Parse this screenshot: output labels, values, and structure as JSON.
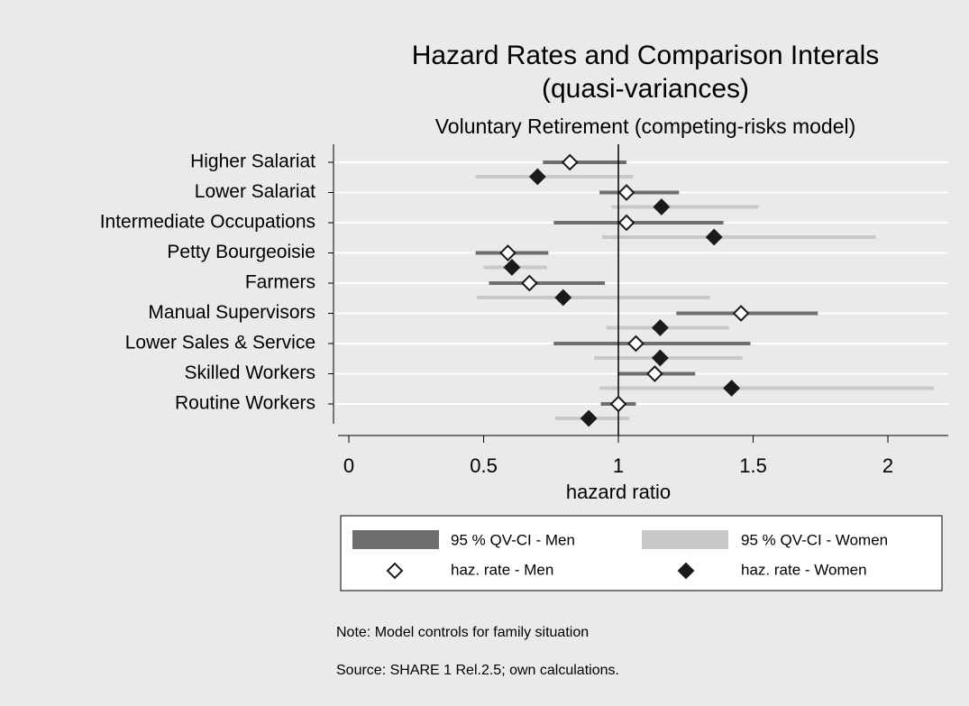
{
  "chart_data": {
    "type": "dot",
    "title": [
      "Hazard Rates and Comparison Interals",
      "(quasi-variances)"
    ],
    "subtitle": "Voluntary Retirement (competing-risks model)",
    "x_label": "hazard ratio",
    "categories": [
      "Higher Salariat",
      "Lower Salariat",
      "Intermediate Occupations",
      "Petty Bourgeoisie",
      "Farmers",
      "Manual Supervisors",
      "Lower Sales & Service",
      "Skilled Workers",
      "Routine Workers"
    ],
    "series": [
      {
        "name": "haz. rate  - Men",
        "marker": "hollow",
        "color": "#1a1a1a",
        "values": [
          0.82,
          1.03,
          1.03,
          0.59,
          0.67,
          1.455,
          1.065,
          1.135,
          1.0
        ],
        "ci": {
          "name": "95 % QV-CI - Men",
          "color": "#6e6e6e",
          "lower": [
            0.72,
            0.93,
            0.76,
            0.47,
            0.52,
            1.215,
            0.76,
            1.0,
            0.935
          ],
          "upper": [
            1.03,
            1.225,
            1.39,
            0.74,
            0.95,
            1.74,
            1.49,
            1.285,
            1.065
          ]
        }
      },
      {
        "name": "haz. rate - Women",
        "marker": "filled",
        "color": "#1a1a1a",
        "values": [
          0.7,
          1.16,
          1.355,
          0.605,
          0.795,
          1.155,
          1.155,
          1.42,
          0.89
        ],
        "ci": {
          "name": "95 % QV-CI - Women",
          "color": "#c8c8c8",
          "lower": [
            0.47,
            0.975,
            0.94,
            0.5,
            0.475,
            0.955,
            0.91,
            0.93,
            0.765
          ],
          "upper": [
            1.055,
            1.52,
            1.955,
            0.735,
            1.34,
            1.41,
            1.46,
            2.17,
            1.04
          ]
        }
      }
    ],
    "xlim": [
      -0.057,
      2.224
    ],
    "xticks": [
      0,
      0.5,
      1,
      1.5,
      2
    ],
    "xline": 1,
    "grid": true,
    "notes": [
      "Note: Model controls for family situation",
      "Source: SHARE 1 Rel.2.5; own calculations."
    ]
  }
}
